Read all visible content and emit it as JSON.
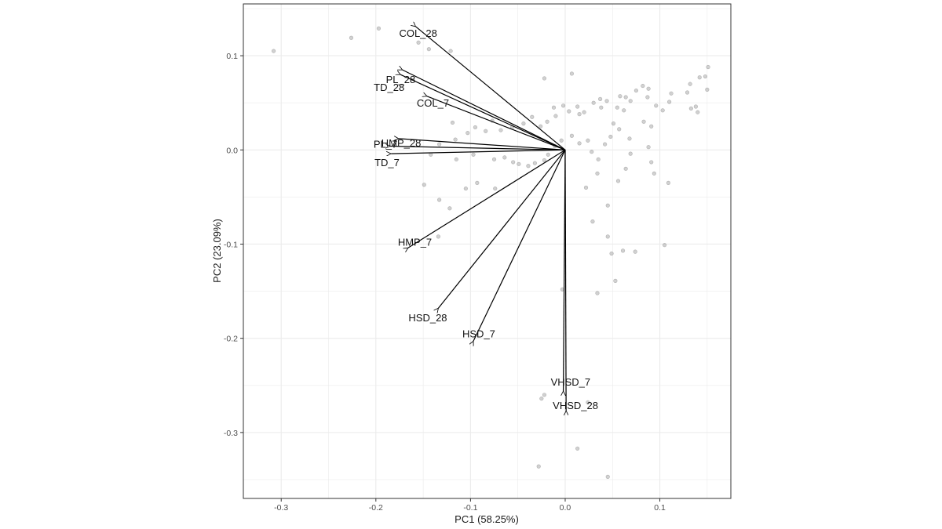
{
  "chart_data": {
    "type": "scatter",
    "subtype": "pca-biplot",
    "title": "",
    "xlabel": "PC1 (58.25%)",
    "ylabel": "PC2 (23.09%)",
    "xlim": [
      -0.34,
      0.175
    ],
    "ylim": [
      -0.37,
      0.155
    ],
    "x_ticks": [
      -0.3,
      -0.2,
      -0.1,
      0.0,
      0.1
    ],
    "x_tick_labels": [
      "-0.3",
      "-0.2",
      "-0.1",
      "0.0",
      "0.1"
    ],
    "y_ticks": [
      0.1,
      0.0,
      -0.1,
      -0.2,
      -0.3
    ],
    "y_tick_labels": [
      "0.1",
      "0.0",
      "-0.1",
      "-0.2",
      "-0.3"
    ],
    "grid": true,
    "legend": "none",
    "colors": {
      "points": "#9a9a9a",
      "arrows": "#000000",
      "grid": "#ebebeb",
      "panel_border": "#333333"
    },
    "loadings": [
      {
        "name": "COL_28",
        "x": -0.158,
        "y": 0.131
      },
      {
        "name": "PL_28",
        "x": -0.172,
        "y": 0.085
      },
      {
        "name": "TD_28",
        "x": -0.174,
        "y": 0.08
      },
      {
        "name": "COL_7",
        "x": -0.146,
        "y": 0.057
      },
      {
        "name": "HMP_28",
        "x": -0.176,
        "y": 0.012
      },
      {
        "name": "PL_7",
        "x": -0.185,
        "y": 0.004
      },
      {
        "name": "TD_7",
        "x": -0.184,
        "y": -0.004
      },
      {
        "name": "HMP_7",
        "x": -0.166,
        "y": -0.104
      },
      {
        "name": "HSD_28",
        "x": -0.134,
        "y": -0.168
      },
      {
        "name": "HSD_7",
        "x": -0.097,
        "y": -0.203
      },
      {
        "name": "VHSD_7",
        "x": -0.002,
        "y": -0.256
      },
      {
        "name": "VHSD_28",
        "x": 0.001,
        "y": -0.277
      }
    ],
    "scores": [
      {
        "x": -0.308,
        "y": 0.105
      },
      {
        "x": -0.226,
        "y": 0.119
      },
      {
        "x": -0.197,
        "y": 0.129
      },
      {
        "x": -0.155,
        "y": 0.114
      },
      {
        "x": -0.144,
        "y": 0.107
      },
      {
        "x": -0.121,
        "y": 0.105
      },
      {
        "x": -0.022,
        "y": 0.076
      },
      {
        "x": 0.007,
        "y": 0.081
      },
      {
        "x": 0.088,
        "y": 0.065
      },
      {
        "x": 0.151,
        "y": 0.088
      },
      {
        "x": 0.148,
        "y": 0.078
      },
      {
        "x": 0.142,
        "y": 0.077
      },
      {
        "x": 0.132,
        "y": 0.07
      },
      {
        "x": 0.129,
        "y": 0.061
      },
      {
        "x": 0.15,
        "y": 0.064
      },
      {
        "x": 0.112,
        "y": 0.06
      },
      {
        "x": 0.087,
        "y": 0.056
      },
      {
        "x": 0.082,
        "y": 0.068
      },
      {
        "x": 0.075,
        "y": 0.063
      },
      {
        "x": 0.069,
        "y": 0.052
      },
      {
        "x": 0.064,
        "y": 0.056
      },
      {
        "x": 0.058,
        "y": 0.057
      },
      {
        "x": 0.062,
        "y": 0.042
      },
      {
        "x": 0.055,
        "y": 0.045
      },
      {
        "x": 0.044,
        "y": 0.052
      },
      {
        "x": 0.037,
        "y": 0.054
      },
      {
        "x": 0.038,
        "y": 0.045
      },
      {
        "x": 0.03,
        "y": 0.05
      },
      {
        "x": 0.02,
        "y": 0.04
      },
      {
        "x": 0.015,
        "y": 0.038
      },
      {
        "x": 0.013,
        "y": 0.046
      },
      {
        "x": 0.004,
        "y": 0.041
      },
      {
        "x": -0.002,
        "y": 0.047
      },
      {
        "x": -0.012,
        "y": 0.045
      },
      {
        "x": -0.01,
        "y": 0.036
      },
      {
        "x": -0.019,
        "y": 0.03
      },
      {
        "x": -0.026,
        "y": 0.025
      },
      {
        "x": -0.035,
        "y": 0.035
      },
      {
        "x": -0.044,
        "y": 0.028
      },
      {
        "x": -0.056,
        "y": 0.024
      },
      {
        "x": -0.068,
        "y": 0.021
      },
      {
        "x": -0.077,
        "y": 0.031
      },
      {
        "x": -0.084,
        "y": 0.02
      },
      {
        "x": -0.095,
        "y": 0.024
      },
      {
        "x": -0.103,
        "y": 0.018
      },
      {
        "x": -0.119,
        "y": 0.029
      },
      {
        "x": -0.116,
        "y": 0.011
      },
      {
        "x": -0.133,
        "y": 0.006
      },
      {
        "x": -0.142,
        "y": -0.005
      },
      {
        "x": -0.115,
        "y": -0.01
      },
      {
        "x": -0.097,
        "y": -0.005
      },
      {
        "x": -0.075,
        "y": -0.01
      },
      {
        "x": -0.064,
        "y": -0.008
      },
      {
        "x": -0.055,
        "y": -0.013
      },
      {
        "x": -0.049,
        "y": -0.015
      },
      {
        "x": -0.039,
        "y": -0.017
      },
      {
        "x": -0.032,
        "y": -0.014
      },
      {
        "x": -0.022,
        "y": -0.011
      },
      {
        "x": -0.018,
        "y": -0.005
      },
      {
        "x": -0.011,
        "y": 0.004
      },
      {
        "x": -0.004,
        "y": 0.01
      },
      {
        "x": 0.007,
        "y": 0.015
      },
      {
        "x": 0.015,
        "y": 0.007
      },
      {
        "x": 0.024,
        "y": 0.01
      },
      {
        "x": 0.028,
        "y": -0.002
      },
      {
        "x": 0.035,
        "y": -0.01
      },
      {
        "x": 0.042,
        "y": 0.006
      },
      {
        "x": 0.048,
        "y": 0.014
      },
      {
        "x": 0.051,
        "y": 0.028
      },
      {
        "x": 0.057,
        "y": 0.022
      },
      {
        "x": 0.068,
        "y": 0.012
      },
      {
        "x": 0.083,
        "y": 0.03
      },
      {
        "x": 0.091,
        "y": 0.025
      },
      {
        "x": 0.096,
        "y": 0.047
      },
      {
        "x": 0.103,
        "y": 0.042
      },
      {
        "x": 0.11,
        "y": 0.051
      },
      {
        "x": 0.138,
        "y": 0.046
      },
      {
        "x": 0.14,
        "y": 0.04
      },
      {
        "x": 0.133,
        "y": 0.044
      },
      {
        "x": 0.088,
        "y": 0.003
      },
      {
        "x": 0.091,
        "y": -0.013
      },
      {
        "x": 0.094,
        "y": -0.025
      },
      {
        "x": 0.109,
        "y": -0.035
      },
      {
        "x": 0.069,
        "y": -0.004
      },
      {
        "x": 0.064,
        "y": -0.02
      },
      {
        "x": 0.056,
        "y": -0.033
      },
      {
        "x": 0.034,
        "y": -0.025
      },
      {
        "x": 0.022,
        "y": -0.04
      },
      {
        "x": 0.045,
        "y": -0.059
      },
      {
        "x": 0.029,
        "y": -0.076
      },
      {
        "x": 0.045,
        "y": -0.092
      },
      {
        "x": 0.049,
        "y": -0.11
      },
      {
        "x": 0.061,
        "y": -0.107
      },
      {
        "x": 0.074,
        "y": -0.108
      },
      {
        "x": 0.105,
        "y": -0.101
      },
      {
        "x": 0.053,
        "y": -0.139
      },
      {
        "x": 0.034,
        "y": -0.152
      },
      {
        "x": -0.003,
        "y": -0.148
      },
      {
        "x": -0.074,
        "y": -0.041
      },
      {
        "x": -0.093,
        "y": -0.035
      },
      {
        "x": -0.105,
        "y": -0.041
      },
      {
        "x": -0.122,
        "y": -0.062
      },
      {
        "x": -0.134,
        "y": -0.092
      },
      {
        "x": -0.149,
        "y": -0.037
      },
      {
        "x": -0.133,
        "y": -0.053
      },
      {
        "x": -0.022,
        "y": -0.26
      },
      {
        "x": -0.025,
        "y": -0.264
      },
      {
        "x": -0.028,
        "y": -0.336
      },
      {
        "x": 0.013,
        "y": -0.317
      },
      {
        "x": 0.024,
        "y": -0.268
      },
      {
        "x": 0.045,
        "y": -0.347
      }
    ]
  }
}
